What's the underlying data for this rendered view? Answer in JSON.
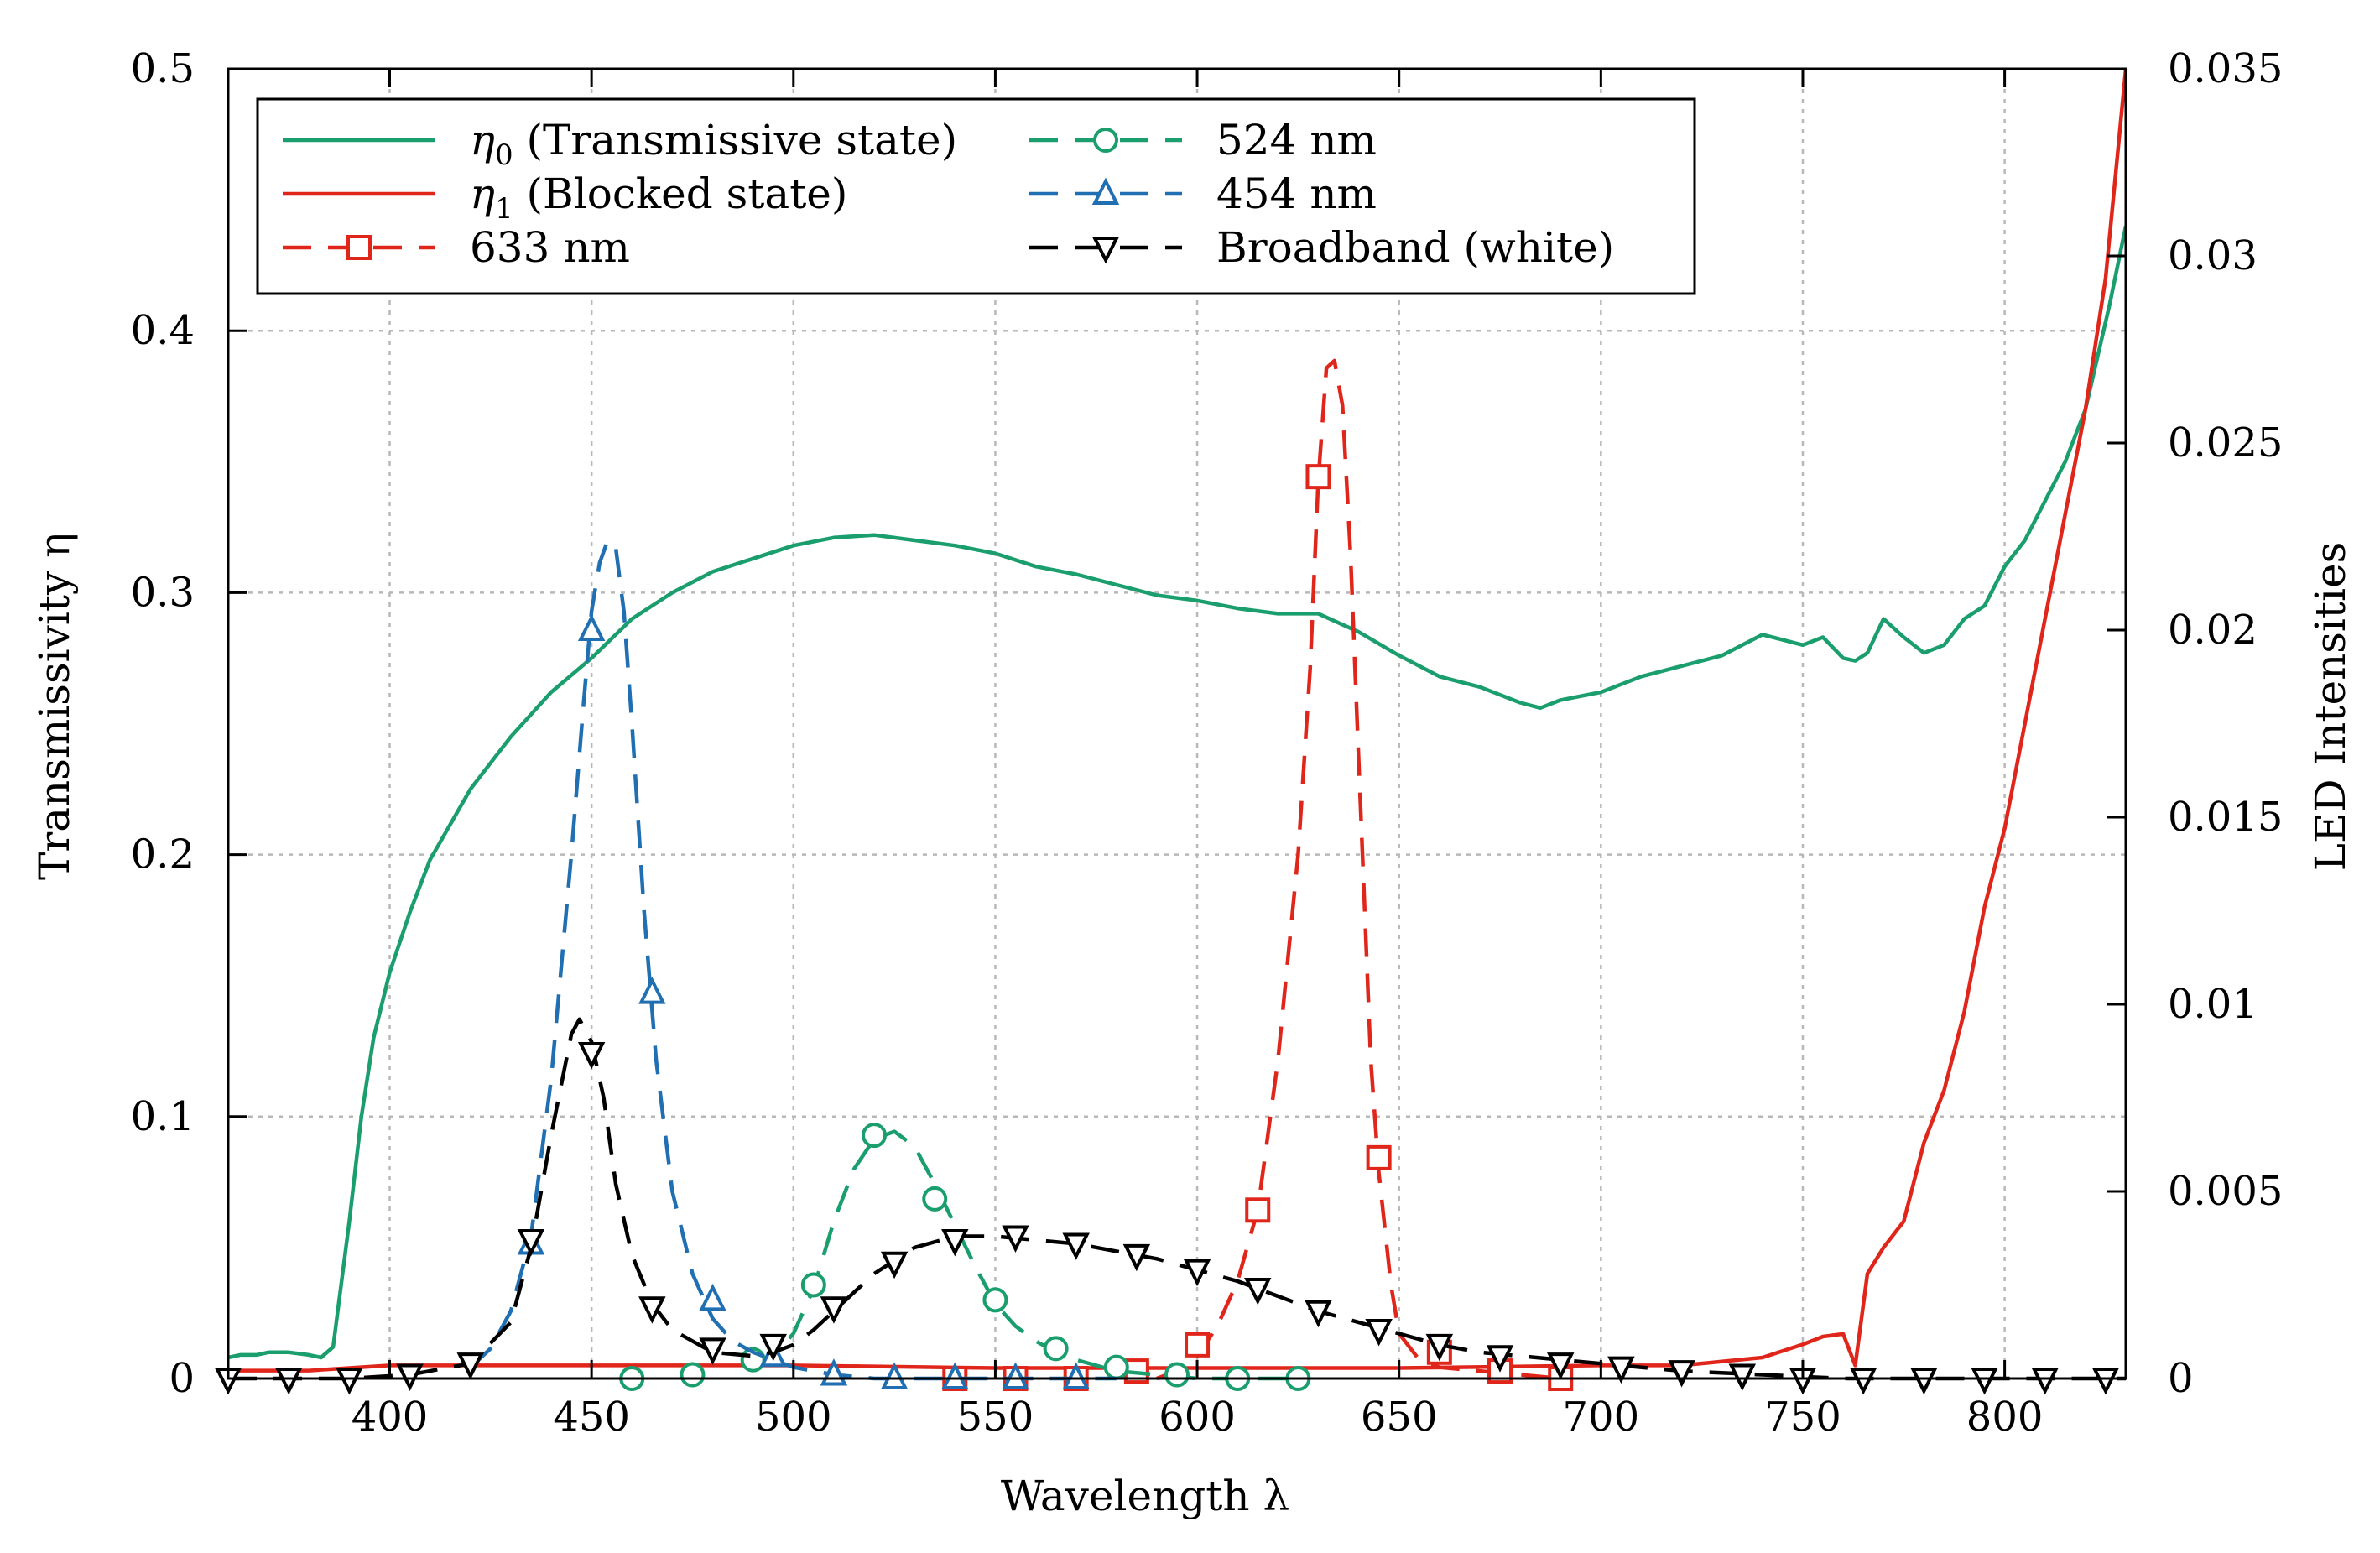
{
  "chart_data": {
    "type": "line",
    "title": "",
    "xlabel": "Wavelength λ",
    "ylabel": "Transmissivity η",
    "y2label": "LED Intensities",
    "xlim": [
      360,
      830
    ],
    "ylim": [
      0,
      0.5
    ],
    "y2lim": [
      0,
      0.035
    ],
    "grid": true,
    "legend_position": "top-left",
    "x_ticks": [
      400,
      450,
      500,
      550,
      600,
      650,
      700,
      750,
      800
    ],
    "x_tick_labels": [
      "400",
      "450",
      "500",
      "550",
      "600",
      "650",
      "700",
      "750",
      "800"
    ],
    "y_ticks": [
      0,
      0.1,
      0.2,
      0.3,
      0.4,
      0.5
    ],
    "y_tick_labels": [
      "0",
      "0.1",
      "0.2",
      "0.3",
      "0.4",
      "0.5"
    ],
    "y2_ticks": [
      0,
      0.005,
      0.01,
      0.015,
      0.02,
      0.025,
      0.03,
      0.035
    ],
    "y2_tick_labels": [
      "0",
      "0.005",
      "0.01",
      "0.015",
      "0.02",
      "0.025",
      "0.03",
      "0.035"
    ],
    "colors": {
      "green": "#1a9e6e",
      "red": "#e0261b",
      "blue": "#1f6fb2",
      "black": "#000000",
      "grid": "#b8b8b8"
    },
    "legend": [
      {
        "sym": "η",
        "sub": "0",
        "text": " (Transmissive state)",
        "series": "eta0"
      },
      {
        "sym": "η",
        "sub": "1",
        "text": " (Blocked state)",
        "series": "eta1"
      },
      {
        "text": "633 nm",
        "series": "led633"
      },
      {
        "text": "524 nm",
        "series": "led524"
      },
      {
        "text": "454 nm",
        "series": "led454"
      },
      {
        "text": "Broadband (white)",
        "series": "broadband"
      }
    ],
    "series": [
      {
        "id": "eta0",
        "name": "η0 (Transmissive state)",
        "axis": "left",
        "color": "#1a9e6e",
        "dash": false,
        "marker": "none",
        "width": 4.5,
        "x": [
          360,
          363,
          367,
          370,
          375,
          380,
          383,
          386,
          390,
          393,
          396,
          400,
          405,
          410,
          420,
          430,
          440,
          450,
          460,
          470,
          480,
          490,
          500,
          510,
          520,
          530,
          540,
          550,
          560,
          570,
          580,
          590,
          600,
          610,
          620,
          630,
          640,
          650,
          660,
          670,
          680,
          685,
          690,
          700,
          710,
          720,
          730,
          735,
          740,
          745,
          750,
          755,
          760,
          763,
          766,
          770,
          775,
          780,
          785,
          790,
          795,
          800,
          805,
          810,
          815,
          820,
          823,
          826,
          830
        ],
        "y": [
          0.008,
          0.009,
          0.009,
          0.01,
          0.01,
          0.009,
          0.008,
          0.012,
          0.06,
          0.1,
          0.13,
          0.155,
          0.178,
          0.198,
          0.225,
          0.245,
          0.262,
          0.275,
          0.29,
          0.3,
          0.308,
          0.313,
          0.318,
          0.321,
          0.322,
          0.32,
          0.318,
          0.315,
          0.31,
          0.307,
          0.303,
          0.299,
          0.297,
          0.294,
          0.292,
          0.292,
          0.285,
          0.276,
          0.268,
          0.264,
          0.258,
          0.256,
          0.259,
          0.262,
          0.268,
          0.272,
          0.276,
          0.28,
          0.284,
          0.282,
          0.28,
          0.283,
          0.275,
          0.274,
          0.277,
          0.29,
          0.283,
          0.277,
          0.28,
          0.29,
          0.295,
          0.31,
          0.32,
          0.335,
          0.35,
          0.37,
          0.39,
          0.41,
          0.44
        ]
      },
      {
        "id": "eta1",
        "name": "η1 (Blocked state)",
        "axis": "left",
        "color": "#e0261b",
        "dash": false,
        "marker": "none",
        "width": 4.5,
        "x": [
          360,
          380,
          390,
          400,
          420,
          450,
          500,
          550,
          600,
          650,
          700,
          720,
          740,
          750,
          755,
          760,
          763,
          766,
          770,
          775,
          780,
          785,
          790,
          795,
          800,
          805,
          810,
          815,
          820,
          825,
          830
        ],
        "y": [
          0.003,
          0.003,
          0.004,
          0.005,
          0.005,
          0.005,
          0.005,
          0.004,
          0.004,
          0.004,
          0.005,
          0.005,
          0.008,
          0.013,
          0.016,
          0.017,
          0.005,
          0.04,
          0.05,
          0.06,
          0.09,
          0.11,
          0.14,
          0.18,
          0.21,
          0.25,
          0.29,
          0.33,
          0.37,
          0.42,
          0.5
        ]
      },
      {
        "id": "led633",
        "name": "633 nm",
        "axis": "right",
        "color": "#e0261b",
        "dash": true,
        "marker": "square",
        "width": 4.5,
        "x": [
          590,
          595,
          600,
          605,
          610,
          615,
          620,
          625,
          628,
          630,
          632,
          634,
          636,
          638,
          640,
          643,
          645,
          648,
          650,
          655,
          660,
          670,
          690
        ],
        "y": [
          0.0,
          0.0002,
          0.0006,
          0.0014,
          0.0026,
          0.0045,
          0.0085,
          0.014,
          0.019,
          0.024,
          0.027,
          0.0272,
          0.026,
          0.022,
          0.0165,
          0.0085,
          0.0055,
          0.0025,
          0.0012,
          0.0005,
          0.0003,
          0.0002,
          0.0
        ],
        "markers_x": [
          540,
          555,
          570,
          585,
          600,
          615,
          630,
          645,
          660,
          675,
          690
        ],
        "markers_y": [
          0.0,
          0.0,
          0.0,
          0.0002,
          0.0009,
          0.0045,
          0.0241,
          0.0059,
          0.0007,
          0.0002,
          0.0
        ]
      },
      {
        "id": "led524",
        "name": "524 nm",
        "axis": "right",
        "color": "#1a9e6e",
        "dash": true,
        "marker": "circle",
        "width": 4.5,
        "x": [
          490,
          495,
          500,
          505,
          510,
          515,
          520,
          525,
          530,
          535,
          540,
          545,
          550,
          555,
          560,
          565,
          570,
          580,
          590,
          600,
          610,
          625
        ],
        "y": [
          0.0004,
          0.0006,
          0.0012,
          0.0024,
          0.0042,
          0.0056,
          0.0064,
          0.0066,
          0.0062,
          0.0052,
          0.0041,
          0.003,
          0.002,
          0.0014,
          0.001,
          0.0007,
          0.0005,
          0.0002,
          0.0001,
          0.0,
          0.0,
          0.0
        ],
        "markers_x": [
          460,
          475,
          490,
          505,
          520,
          535,
          550,
          565,
          580,
          595,
          610,
          625
        ],
        "markers_y": [
          0.0,
          0.0001,
          0.0005,
          0.0025,
          0.0065,
          0.0048,
          0.0021,
          0.0008,
          0.0003,
          0.0001,
          0.0,
          0.0
        ]
      },
      {
        "id": "led454",
        "name": "454 nm",
        "axis": "right",
        "color": "#1f6fb2",
        "dash": true,
        "marker": "triangle-up",
        "width": 4.5,
        "x": [
          420,
          425,
          430,
          435,
          440,
          445,
          448,
          450,
          452,
          454,
          456,
          458,
          460,
          463,
          466,
          470,
          475,
          480,
          485,
          490,
          495,
          500,
          510,
          520,
          540,
          560,
          580
        ],
        "y": [
          0.0003,
          0.0008,
          0.0018,
          0.0038,
          0.008,
          0.014,
          0.018,
          0.0205,
          0.0218,
          0.0224,
          0.0222,
          0.0205,
          0.0175,
          0.0125,
          0.0085,
          0.005,
          0.0028,
          0.0016,
          0.001,
          0.0007,
          0.0005,
          0.0003,
          0.0001,
          0.0,
          0.0,
          0.0,
          0.0
        ],
        "markers_x": [
          435,
          450,
          465,
          480,
          495,
          510,
          525,
          540,
          555,
          570
        ],
        "markers_y": [
          0.0036,
          0.02,
          0.0103,
          0.0021,
          0.0006,
          0.0001,
          0.0,
          0.0,
          0.0,
          0.0
        ]
      },
      {
        "id": "broadband",
        "name": "Broadband (white)",
        "axis": "right",
        "color": "#000000",
        "dash": true,
        "marker": "triangle-down",
        "width": 4.5,
        "x": [
          360,
          390,
          405,
          420,
          430,
          435,
          440,
          445,
          447,
          450,
          453,
          456,
          460,
          465,
          470,
          480,
          490,
          495,
          500,
          505,
          510,
          520,
          530,
          540,
          550,
          560,
          570,
          580,
          590,
          600,
          610,
          620,
          630,
          640,
          650,
          660,
          670,
          680,
          690,
          700,
          720,
          740,
          760,
          780,
          800,
          830
        ],
        "y": [
          0.0,
          0.0,
          0.0001,
          0.0004,
          0.0015,
          0.0035,
          0.0065,
          0.0092,
          0.0096,
          0.009,
          0.0075,
          0.0052,
          0.0033,
          0.002,
          0.0013,
          0.0007,
          0.0006,
          0.0007,
          0.0009,
          0.0013,
          0.0018,
          0.0028,
          0.0035,
          0.0038,
          0.0038,
          0.0037,
          0.0036,
          0.0034,
          0.0032,
          0.0029,
          0.0026,
          0.0022,
          0.0018,
          0.0015,
          0.0012,
          0.0009,
          0.0007,
          0.0006,
          0.0005,
          0.0004,
          0.0002,
          0.0001,
          0.0,
          0.0,
          0.0,
          0.0
        ],
        "markers_x": [
          360,
          375,
          390,
          405,
          420,
          435,
          450,
          465,
          480,
          495,
          510,
          525,
          540,
          555,
          570,
          585,
          600,
          615,
          630,
          645,
          660,
          675,
          690,
          705,
          720,
          735,
          750,
          765,
          780,
          795,
          810,
          825
        ],
        "markers_y": [
          0.0,
          0.0,
          0.0,
          0.0001,
          0.0004,
          0.0037,
          0.0087,
          0.0019,
          0.0008,
          0.0009,
          0.0019,
          0.0031,
          0.0037,
          0.0038,
          0.0036,
          0.0033,
          0.0029,
          0.0024,
          0.0018,
          0.0013,
          0.0009,
          0.0006,
          0.0004,
          0.0003,
          0.0002,
          0.0001,
          0.0,
          0.0,
          0.0,
          0.0,
          0.0,
          0.0
        ]
      }
    ]
  }
}
